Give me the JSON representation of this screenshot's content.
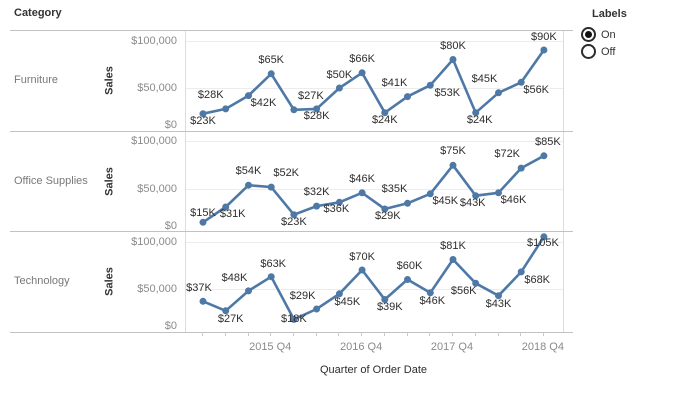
{
  "header": {
    "category_label": "Category"
  },
  "controls": {
    "title": "Labels",
    "options": [
      {
        "label": "On",
        "selected": true
      },
      {
        "label": "Off",
        "selected": false
      }
    ]
  },
  "chart_data": {
    "type": "line",
    "line_color": "#4e79a7",
    "ylabel": "Sales",
    "xlabel": "Quarter of Order Date",
    "ylim_k": [
      0,
      111
    ],
    "grid": "horizontal",
    "y_ticks": [
      {
        "label": "$100,000",
        "value_k": 100
      },
      {
        "label": "$50,000",
        "value_k": 50
      },
      {
        "label": "$0",
        "value_k": 0
      }
    ],
    "x_tick_labels": [
      "2015 Q4",
      "2016 Q4",
      "2017 Q4",
      "2018 Q4"
    ],
    "x_tick_indices": [
      3,
      7,
      11,
      15
    ],
    "points_per_row": 16,
    "rows": [
      {
        "category": "Furniture",
        "values_k": [
          23,
          28,
          42,
          65,
          27,
          28,
          50,
          66,
          24,
          41,
          53,
          80,
          24,
          45,
          56,
          90
        ],
        "labels": [
          "$23K",
          "$28K",
          "$42K",
          "$65K",
          "$27K",
          "$28K",
          "$50K",
          "$66K",
          "$24K",
          "$41K",
          "$53K",
          "$80K",
          "$24K",
          "$45K",
          "$56K",
          "$90K"
        ],
        "label_pos": [
          "below",
          "above",
          "below",
          "above",
          "above",
          "below",
          "above",
          "above",
          "below",
          "above",
          "below",
          "above",
          "below",
          "above",
          "below",
          "above"
        ],
        "label_dx": [
          0,
          -15,
          15,
          0,
          17,
          0,
          0,
          0,
          0,
          -13,
          17,
          0,
          4,
          -14,
          15,
          0
        ],
        "label_dy": [
          0,
          0,
          0,
          0,
          0,
          0,
          0,
          0,
          0,
          0,
          0,
          0,
          0,
          0,
          0,
          0
        ]
      },
      {
        "category": "Office Supplies",
        "values_k": [
          15,
          31,
          54,
          52,
          23,
          32,
          36,
          46,
          29,
          35,
          45,
          75,
          43,
          46,
          72,
          85
        ],
        "labels": [
          "$15K",
          "$31K",
          "$54K",
          "$52K",
          "$23K",
          "$32K",
          "$36K",
          "$46K",
          "$29K",
          "$35K",
          "$45K",
          "$75K",
          "$43K",
          "$46K",
          "$72K",
          "$85K"
        ],
        "label_pos": [
          "below",
          "below",
          "above",
          "above",
          "below",
          "above",
          "below",
          "above",
          "below",
          "above",
          "below",
          "above",
          "below",
          "below",
          "above",
          "above"
        ],
        "label_dx": [
          0,
          7,
          0,
          15,
          0,
          0,
          -3,
          0,
          3,
          -13,
          15,
          0,
          -3,
          15,
          -14,
          4
        ],
        "label_dy": [
          -16,
          0,
          0,
          0,
          0,
          0,
          0,
          0,
          0,
          0,
          0,
          0,
          0,
          0,
          0,
          0
        ]
      },
      {
        "category": "Technology",
        "values_k": [
          37,
          27,
          48,
          63,
          18,
          29,
          45,
          70,
          39,
          60,
          46,
          81,
          56,
          43,
          68,
          105
        ],
        "labels": [
          "$37K",
          "$27K",
          "$48K",
          "$63K",
          "$18K",
          "$29K",
          "$45K",
          "$70K",
          "$39K",
          "$60K",
          "$46K",
          "$81K",
          "$56K",
          "$43K",
          "$68K",
          "$105K"
        ],
        "label_pos": [
          "above",
          "below",
          "above",
          "above",
          "below",
          "above",
          "below",
          "above",
          "below",
          "above",
          "below",
          "above",
          "below",
          "below",
          "below",
          "below"
        ],
        "label_dx": [
          -4,
          5,
          -14,
          2,
          0,
          -14,
          8,
          0,
          5,
          2,
          2,
          0,
          -12,
          0,
          16,
          -1
        ],
        "label_dy": [
          0,
          0,
          0,
          0,
          -8,
          0,
          0,
          0,
          0,
          0,
          0,
          0,
          0,
          0,
          0,
          -2
        ]
      }
    ]
  }
}
